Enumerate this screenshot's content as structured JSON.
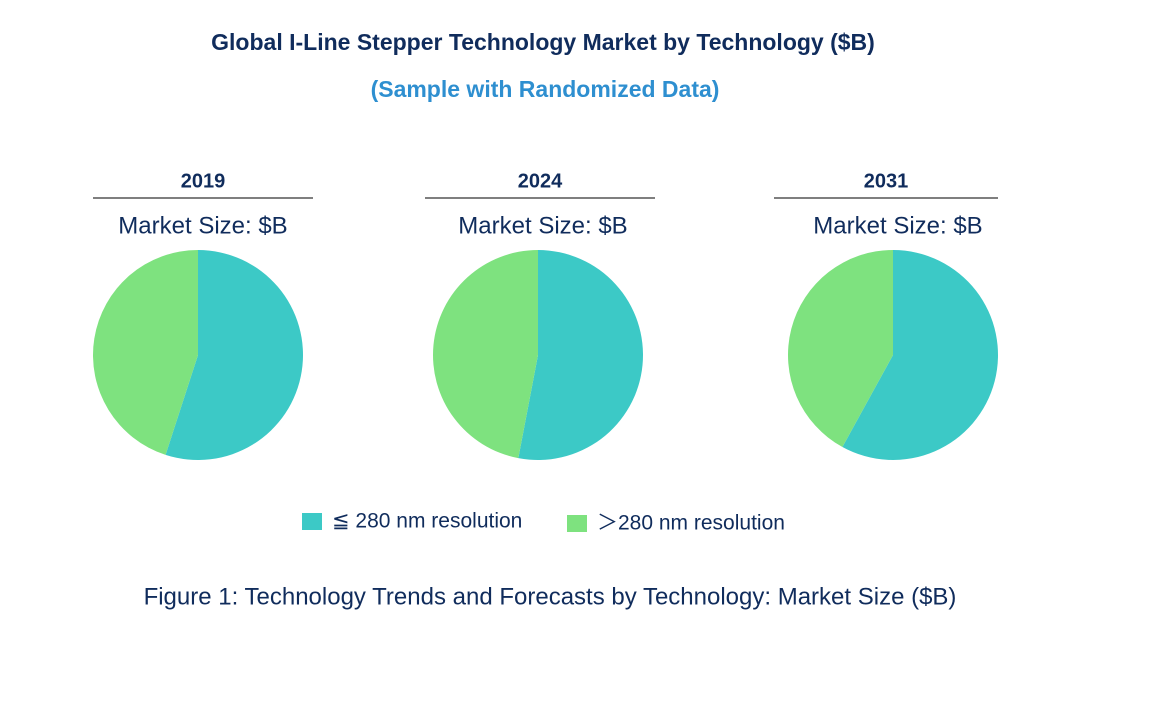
{
  "title": "Global I-Line Stepper Technology Market by Technology ($B)",
  "subtitle": "(Sample with Randomized Data)",
  "caption": "Figure 1: Technology Trends and Forecasts by Technology: Market Size ($B)",
  "legend": [
    "≦ 280 nm resolution",
    "＞280 nm resolution"
  ],
  "colors": [
    "#3cc9c6",
    "#7ee27f"
  ],
  "chart_data": [
    {
      "type": "pie",
      "title": "2019",
      "subtitle": "Market Size: $B",
      "values": [
        55,
        45
      ]
    },
    {
      "type": "pie",
      "title": "2024",
      "subtitle": "Market Size: $B",
      "values": [
        53,
        47
      ]
    },
    {
      "type": "pie",
      "title": "2031",
      "subtitle": "Market Size: $B",
      "values": [
        58,
        42
      ]
    }
  ]
}
